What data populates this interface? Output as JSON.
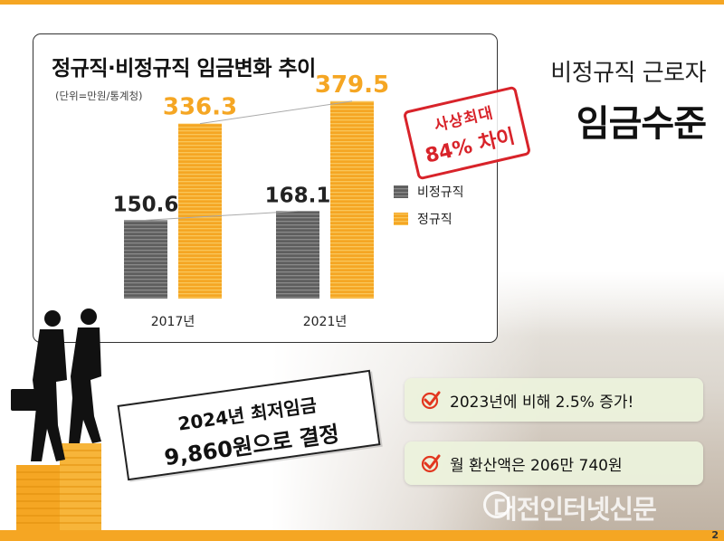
{
  "chart_data": {
    "type": "bar",
    "title": "정규직·비정규직 임금변화 추이",
    "unit_note": "(단위=만원/통계청)",
    "categories": [
      "2017년",
      "2021년"
    ],
    "series": [
      {
        "name": "비정규직",
        "values": [
          150.6,
          168.1
        ],
        "color": "#666666"
      },
      {
        "name": "정규직",
        "values": [
          336.3,
          379.5
        ],
        "color": "#f5a623"
      }
    ],
    "value_labels": {
      "비정규직": [
        "150.6",
        "168.1"
      ],
      "정규직": [
        "336.3",
        "379.5"
      ]
    },
    "ylim": [
      0,
      400
    ],
    "grid": false,
    "legend": "right"
  },
  "headline": {
    "small": "비정규직 근로자",
    "big": "임금수준"
  },
  "stamp": {
    "line1": "사상최대",
    "line2": "84% 차이"
  },
  "minimum_wage": {
    "line1": "2024년 최저임금",
    "line2": "9,860원으로 결정"
  },
  "points": [
    {
      "text": "2023년에 비해 2.5% 증가!"
    },
    {
      "text": "월 환산액은 206만 740원"
    }
  ],
  "watermark": "대전인터넷신문",
  "page_number": "2",
  "colors": {
    "accent": "#f5a623",
    "nonregular": "#666666",
    "stamp": "#d8232a"
  }
}
